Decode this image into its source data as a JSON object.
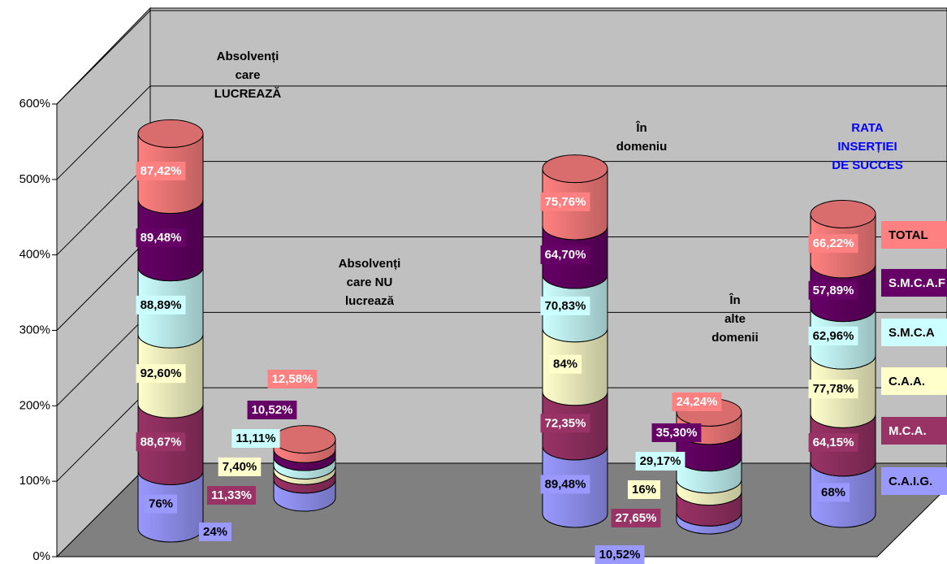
{
  "chart_data": {
    "type": "stacked_cylinder",
    "ylim": [
      0,
      600
    ],
    "yticks": [
      {
        "value": 0,
        "label": "0%"
      },
      {
        "value": 100,
        "label": "100%"
      },
      {
        "value": 200,
        "label": "200%"
      },
      {
        "value": 300,
        "label": "300%"
      },
      {
        "value": 400,
        "label": "400%"
      },
      {
        "value": 500,
        "label": "500%"
      },
      {
        "value": 600,
        "label": "600%"
      }
    ],
    "grid": true,
    "legend": "right",
    "annotations": [
      {
        "lines": [
          "Absolvenți",
          "care",
          "LUCREAZĂ"
        ],
        "color": "#000000"
      },
      {
        "lines": [
          "Absolvenți",
          "care NU",
          "lucrează"
        ],
        "color": "#000000"
      },
      {
        "lines": [
          "În",
          "domeniu"
        ],
        "color": "#000000"
      },
      {
        "lines": [
          "În",
          "alte",
          "domenii"
        ],
        "color": "#000000"
      },
      {
        "lines": [
          "RATA",
          "INSERȚIEI",
          "DE SUCCES"
        ],
        "color": "#0000ff"
      }
    ],
    "series": [
      {
        "name": "C.A.I.G.",
        "color": "#9999ff",
        "values": [
          76,
          24,
          89.48,
          10.52,
          68
        ],
        "value_labels": [
          "76%",
          "24%",
          "89,48%",
          "10,52%",
          "68%"
        ]
      },
      {
        "name": "M.C.A.",
        "color": "#993366",
        "values": [
          88.67,
          11.33,
          72.35,
          27.65,
          64.15
        ],
        "value_labels": [
          "88,67%",
          "11,33%",
          "72,35%",
          "27,65%",
          "64,15%"
        ]
      },
      {
        "name": "C.A.A.",
        "color": "#ffffcc",
        "values": [
          92.6,
          7.4,
          84,
          16,
          77.78
        ],
        "value_labels": [
          "92,60%",
          "7,40%",
          "84%",
          "16%",
          "77,78%"
        ]
      },
      {
        "name": "S.M.C.A",
        "color": "#ccffff",
        "values": [
          88.89,
          11.11,
          70.83,
          29.17,
          62.96
        ],
        "value_labels": [
          "88,89%",
          "11,11%",
          "70,83%",
          "29,17%",
          "62,96%"
        ]
      },
      {
        "name": "S.M.C.A.F",
        "color": "#660066",
        "values": [
          89.48,
          10.52,
          64.7,
          35.3,
          57.89
        ],
        "value_labels": [
          "89,48%",
          "10,52%",
          "64,70%",
          "35,30%",
          "57,89%"
        ]
      },
      {
        "name": "TOTAL",
        "color": "#ff8080",
        "values": [
          87.42,
          12.58,
          75.76,
          24.24,
          66.22
        ],
        "value_labels": [
          "87,42%",
          "12,58%",
          "75,76%",
          "24,24%",
          "66,22%"
        ]
      }
    ]
  }
}
